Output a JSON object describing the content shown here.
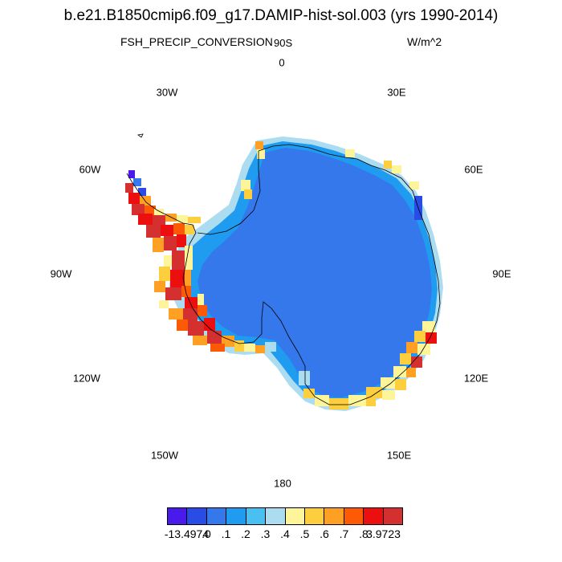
{
  "title": "b.e21.B1850cmip6.f09_g17.DAMIP-hist-sol.003 (yrs 1990-2014)",
  "variable": "FSH_PRECIP_CONVERSION",
  "units": "W/m^2",
  "pole_label": "90S",
  "longitude_labels": {
    "lon_0": "0",
    "lon_30e": "30E",
    "lon_60e": "60E",
    "lon_90e": "90E",
    "lon_120e": "120E",
    "lon_150e": "150E",
    "lon_180": "180",
    "lon_150w": "150W",
    "lon_120w": "120W",
    "lon_90w": "90W",
    "lon_60w": "60W",
    "lon_30w": "30W"
  },
  "colorbar": {
    "colors": [
      "#4a1aec",
      "#2a4ce6",
      "#3478ec",
      "#1f9cef",
      "#4ac0f0",
      "#acdcf0",
      "#fef59a",
      "#fdce3e",
      "#fda023",
      "#fc5a05",
      "#ec0f0f",
      "#d43030"
    ],
    "labels": [
      "-13.4974",
      ".0",
      ".1",
      ".2",
      ".3",
      ".4",
      ".5",
      ".6",
      ".7",
      ".8",
      "3.9723"
    ]
  },
  "map_colors": {
    "interior": "#3478ec",
    "ring_light": "#1f9cef",
    "ring_pale": "#acdcf0",
    "coast_yellow": "#fef59a",
    "coast_orange": "#fda023",
    "coast_red": "#d43030",
    "coast_darkred": "#ec0f0f",
    "coastline": "#000000"
  }
}
